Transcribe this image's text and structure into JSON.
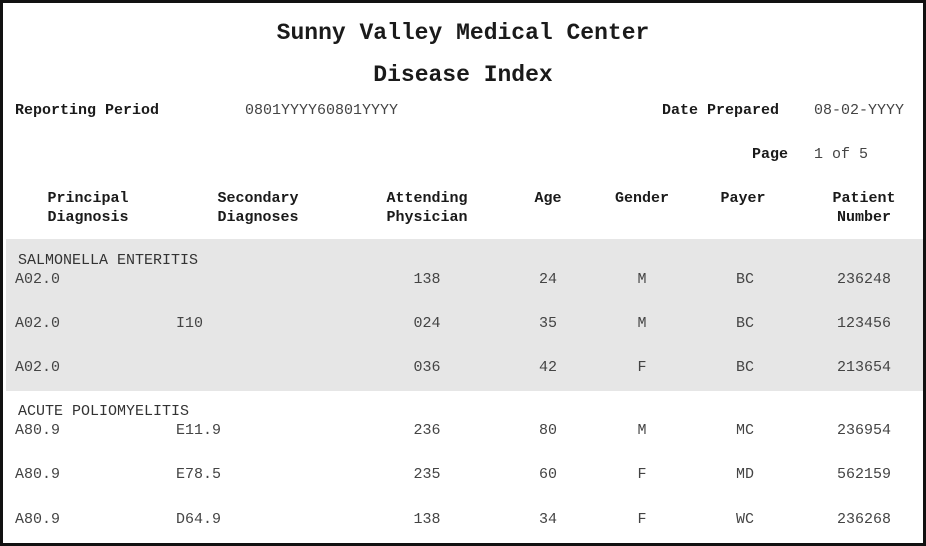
{
  "header": {
    "organization": "Sunny Valley Medical Center",
    "report_title": "Disease Index"
  },
  "meta": {
    "reporting_period_label": "Reporting Period",
    "reporting_period_value": "0801YYYY60801YYYY",
    "date_prepared_label": "Date Prepared",
    "date_prepared_value": "08-02-YYYY",
    "page_label": "Page",
    "page_value": "1 of 5"
  },
  "columns": {
    "principal": [
      "Principal",
      "Diagnosis"
    ],
    "secondary": [
      "Secondary",
      "Diagnoses"
    ],
    "physician": [
      "Attending",
      "Physician"
    ],
    "age": "Age",
    "gender": "Gender",
    "payer": "Payer",
    "patient": [
      "Patient",
      "Number"
    ]
  },
  "groups": [
    {
      "name": "SALMONELLA ENTERITIS",
      "rows": [
        {
          "principal": "A02.0",
          "secondary": "",
          "physician": "138",
          "age": "24",
          "gender": "M",
          "payer": "BC",
          "patient": "236248"
        },
        {
          "principal": "A02.0",
          "secondary": "I10",
          "physician": "024",
          "age": "35",
          "gender": "M",
          "payer": "BC",
          "patient": "123456"
        },
        {
          "principal": "A02.0",
          "secondary": "",
          "physician": "036",
          "age": "42",
          "gender": "F",
          "payer": "BC",
          "patient": "213654"
        }
      ]
    },
    {
      "name": "ACUTE POLIOMYELITIS",
      "rows": [
        {
          "principal": "A80.9",
          "secondary": "E11.9",
          "physician": "236",
          "age": "80",
          "gender": "M",
          "payer": "MC",
          "patient": "236954"
        },
        {
          "principal": "A80.9",
          "secondary": "E78.5",
          "physician": "235",
          "age": "60",
          "gender": "F",
          "payer": "MD",
          "patient": "562159"
        },
        {
          "principal": "A80.9",
          "secondary": "D64.9",
          "physician": "138",
          "age": "34",
          "gender": "F",
          "payer": "WC",
          "patient": "236268"
        }
      ]
    }
  ]
}
